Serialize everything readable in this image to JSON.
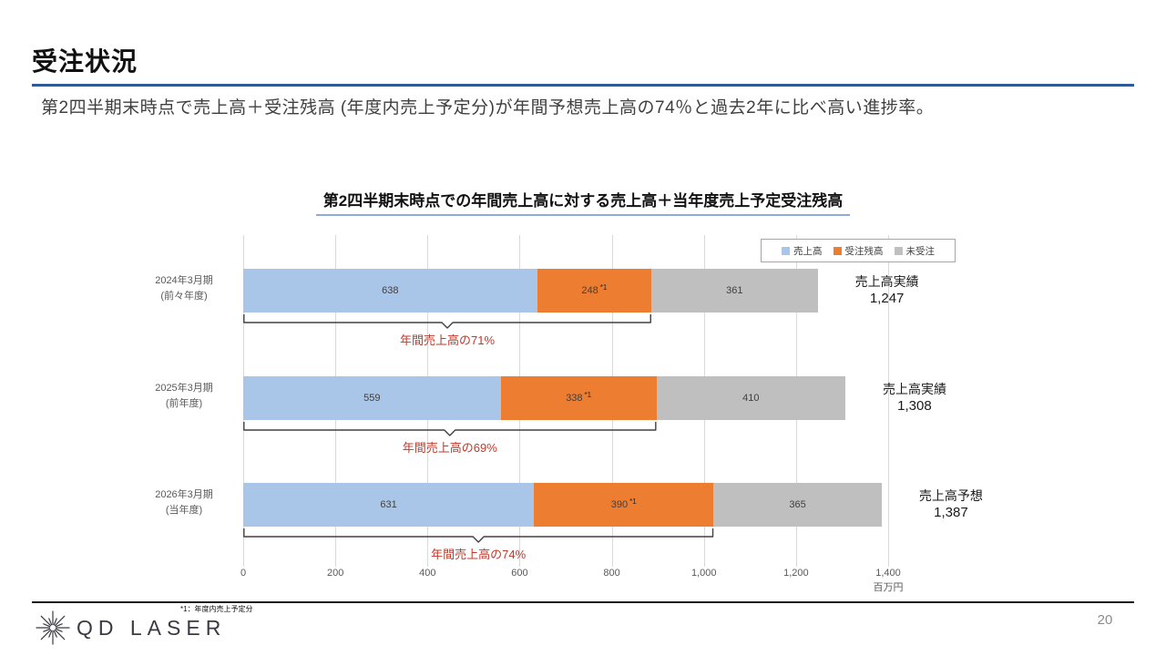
{
  "slide": {
    "title": "受注状況",
    "subtitle": "第2四半期末時点で売上高＋受注残高 (年度内売上予定分)が年間予想売上高の74％と過去2年に比べ高い進捗率。",
    "footnote": "*1：年度内売上予定分",
    "logo_text": "QD LASER",
    "page_number": "20",
    "accent_colors": {
      "title_rule": "#2e5b97",
      "chart_title_rule": "#8faadc",
      "note_red": "#c0392b"
    }
  },
  "chart_data": {
    "type": "bar",
    "orientation": "horizontal",
    "stacked": true,
    "title": "第2四半期末時点での年間売上高に対する売上高＋当年度売上予定受注残高",
    "categories": [
      {
        "line1": "2024年3月期",
        "line2": "(前々年度)"
      },
      {
        "line1": "2025年3月期",
        "line2": "(前年度)"
      },
      {
        "line1": "2026年3月期",
        "line2": "(当年度)"
      }
    ],
    "series": [
      {
        "name": "売上高",
        "color": "#a9c6e8",
        "values": [
          638,
          559,
          631
        ]
      },
      {
        "name": "受注残高",
        "color": "#ed7d31",
        "values": [
          248,
          338,
          390
        ],
        "note_mark": "*1"
      },
      {
        "name": "未受注",
        "color": "#bfbfbf",
        "values": [
          361,
          410,
          365
        ]
      }
    ],
    "totals": [
      {
        "label": "売上高実績",
        "value": "1,247"
      },
      {
        "label": "売上高実績",
        "value": "1,308"
      },
      {
        "label": "売上高予想",
        "value": "1,387"
      }
    ],
    "progress_notes": [
      "年間売上高の71%",
      "年間売上高の69%",
      "年間売上高の74%"
    ],
    "legend": [
      "売上高",
      "受注残高",
      "未受注"
    ],
    "legend_position": "top-right",
    "grid": true,
    "x_ticks": [
      "0",
      "200",
      "400",
      "600",
      "800",
      "1,000",
      "1,200",
      "1,400"
    ],
    "x_axis_unit": "百万円",
    "xlim": [
      0,
      1400
    ]
  }
}
